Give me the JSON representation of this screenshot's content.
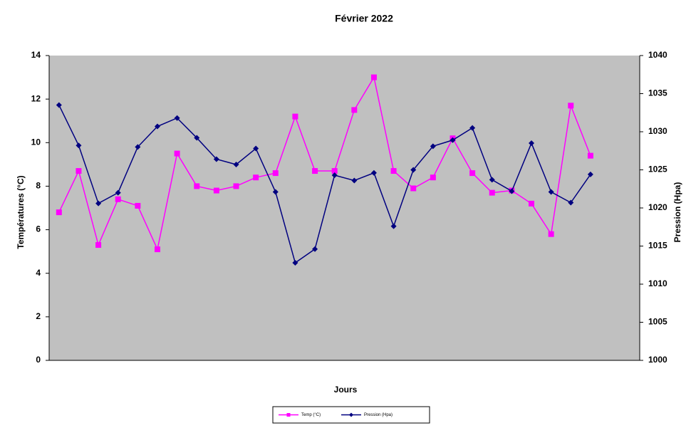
{
  "chart_data": {
    "type": "line",
    "title": "Février 2022",
    "xlabel": "Jours",
    "ylabel": "Températures (°C)",
    "y2label": "Pression (Hpa)",
    "categories": [
      null,
      null,
      null,
      null,
      null,
      null,
      null,
      null,
      null,
      null,
      null,
      null,
      null,
      null,
      null,
      null,
      null,
      null,
      null,
      null,
      null,
      null,
      null,
      null,
      null,
      null,
      null,
      null,
      null,
      null
    ],
    "series": [
      {
        "name": "Temp (°C)",
        "color": "#ff00ff",
        "marker": "square",
        "values": [
          6.8,
          8.7,
          5.3,
          7.4,
          7.1,
          5.1,
          9.5,
          8.0,
          7.8,
          8.0,
          8.4,
          8.6,
          11.2,
          8.7,
          8.7,
          11.5,
          13.0,
          8.7,
          7.9,
          8.4,
          10.2,
          8.6,
          7.7,
          7.8,
          7.2,
          5.8,
          11.7,
          9.4,
          null,
          null
        ]
      },
      {
        "name": "Pression (Hpa)",
        "color": "#000080",
        "marker": "diamond",
        "axis": "y2",
        "values": [
          1033.5,
          1028.2,
          1020.6,
          1022.0,
          1028.0,
          1030.7,
          1031.8,
          1029.2,
          1026.4,
          1025.7,
          1027.8,
          1022.1,
          1012.8,
          1014.6,
          1024.3,
          1023.6,
          1024.6,
          1017.6,
          1025.0,
          1028.1,
          1028.9,
          1030.5,
          1023.7,
          1022.2,
          1028.5,
          1022.1,
          1020.7,
          1024.4,
          null,
          null
        ]
      }
    ],
    "ylim": [
      0,
      14
    ],
    "yticks": [
      0,
      2,
      4,
      6,
      8,
      10,
      12,
      14
    ],
    "y2lim": [
      1000,
      1040
    ],
    "y2ticks": [
      1000,
      1005,
      1010,
      1015,
      1020,
      1025,
      1030,
      1035,
      1040
    ],
    "grid": false,
    "legend": "bottom",
    "plot_background": "#c0c0c0"
  }
}
